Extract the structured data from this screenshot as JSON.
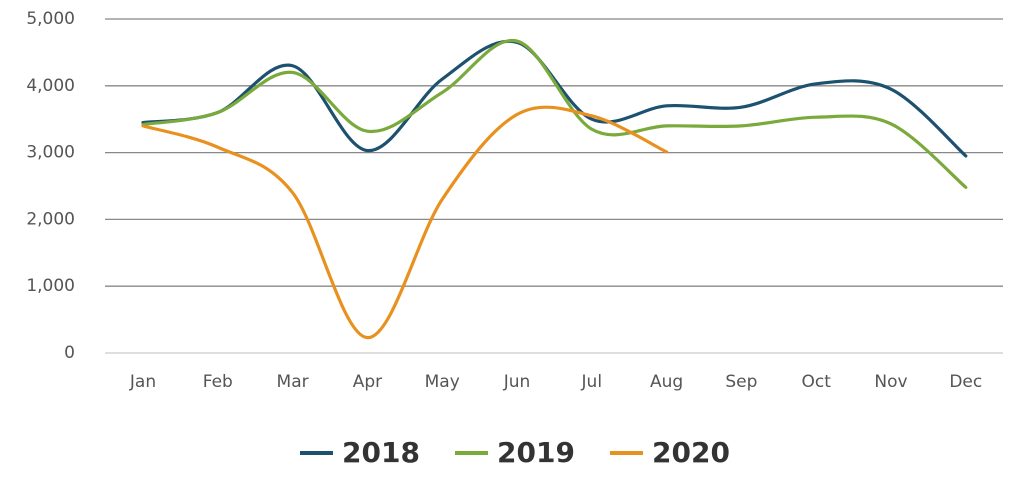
{
  "chart_data": {
    "type": "line",
    "categories": [
      "Jan",
      "Feb",
      "Mar",
      "Apr",
      "May",
      "Jun",
      "Jul",
      "Aug",
      "Sep",
      "Oct",
      "Nov",
      "Dec"
    ],
    "series": [
      {
        "name": "2018",
        "color": "#1d5170",
        "values": [
          3450,
          3600,
          4300,
          3030,
          4100,
          4650,
          3500,
          3700,
          3680,
          4030,
          3950,
          2950
        ]
      },
      {
        "name": "2019",
        "color": "#7aaa3c",
        "values": [
          3420,
          3600,
          4200,
          3320,
          3900,
          4670,
          3350,
          3400,
          3400,
          3530,
          3430,
          2480
        ]
      },
      {
        "name": "2020",
        "color": "#e8911f",
        "values": [
          3400,
          3080,
          2400,
          230,
          2300,
          3570,
          3550,
          3010,
          null,
          null,
          null,
          null
        ]
      }
    ],
    "ylim": [
      0,
      5000
    ],
    "yticks": [
      0,
      {
        "value": 1000,
        "label": "1,000"
      },
      {
        "value": 2000,
        "label": "2,000"
      },
      {
        "value": 3000,
        "label": "3,000"
      },
      {
        "value": 4000,
        "label": "4,000"
      },
      {
        "value": 5000,
        "label": "5,000"
      }
    ],
    "grid": true,
    "legend": "bottom"
  }
}
